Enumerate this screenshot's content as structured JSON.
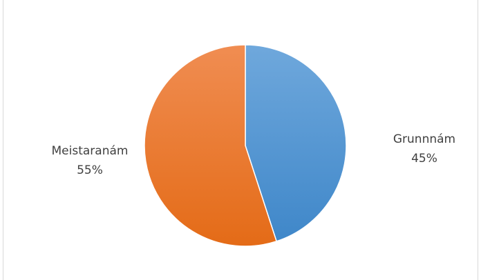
{
  "chart_data": {
    "type": "pie",
    "title": "",
    "slices": [
      {
        "label": "Grunnnám",
        "value": 45,
        "value_label": "45%",
        "color": "#5b9bd5"
      },
      {
        "label": "Meistaranám",
        "value": 55,
        "value_label": "55%",
        "color": "#ed7d31"
      }
    ],
    "start_angle": "12 o'clock",
    "direction": "clockwise",
    "legend": "none"
  }
}
